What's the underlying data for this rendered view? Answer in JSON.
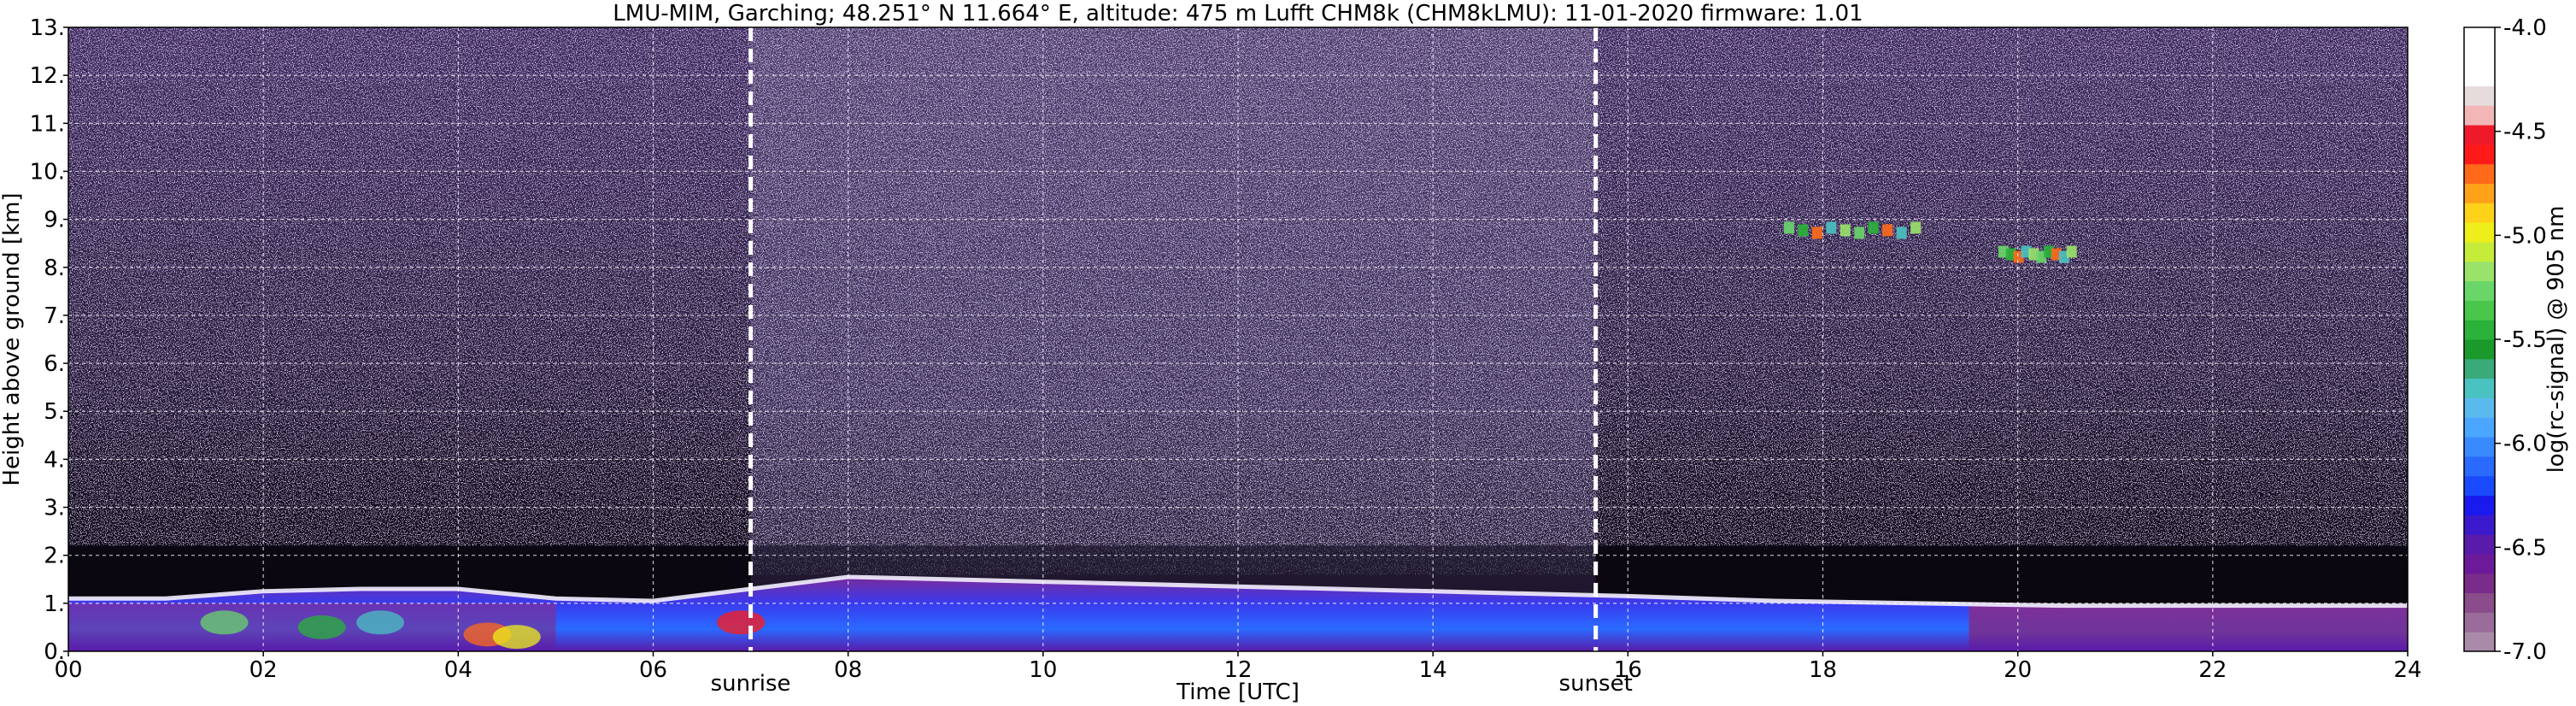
{
  "chart_data": {
    "type": "heatmap",
    "title": "LMU-MIM, Garching; 48.251° N 11.664° E, altitude: 475 m    Lufft CHM8k (CHM8kLMU): 11-01-2020    firmware: 1.01",
    "xlabel": "Time [UTC]",
    "ylabel": "Height above ground [km]",
    "xlim": [
      0,
      24
    ],
    "ylim": [
      0,
      13
    ],
    "x_ticks": [
      "00",
      "02",
      "04",
      "06",
      "08",
      "10",
      "12",
      "14",
      "16",
      "18",
      "20",
      "22",
      "24"
    ],
    "y_ticks": [
      "0.",
      "1.",
      "2.",
      "3.",
      "4.",
      "5.",
      "6.",
      "7.",
      "8.",
      "9.",
      "10.",
      "11.",
      "12.",
      "13."
    ],
    "grid": true,
    "events": [
      {
        "label": "sunrise",
        "time": 7.0
      },
      {
        "label": "sunset",
        "time": 15.67
      }
    ],
    "colorbar": {
      "label": "log(rc-signal) @ 905 nm",
      "range": [
        -7.0,
        -4.0
      ],
      "tick_values": [
        -7.0,
        -6.5,
        -6.0,
        -5.5,
        -5.0,
        -4.5,
        -4.0
      ],
      "tick_labels": [
        "-7.0",
        "-6.5",
        "-6.0",
        "-5.5",
        "-5.0",
        "-4.5",
        "-4.0"
      ],
      "colors": [
        "#a98aa9",
        "#9a6c9a",
        "#8a4c8a",
        "#7a2c8a",
        "#6c1a9a",
        "#5a1aaa",
        "#3a1acc",
        "#1a1aee",
        "#1a4aff",
        "#2a6aff",
        "#3a8aff",
        "#4aa6ff",
        "#5abaee",
        "#4ac2c2",
        "#3aaa7a",
        "#1a9a2a",
        "#2ab23a",
        "#4ac64a",
        "#6ad66a",
        "#9ae26a",
        "#c6ec3a",
        "#eeee1a",
        "#ffd21a",
        "#ffa21a",
        "#ff6a1a",
        "#ff1a1a",
        "#ee1a2a",
        "#f2b6b6",
        "#e6dcdc",
        "#ffffff",
        "#ffffff",
        "#ffffff"
      ]
    },
    "series": [
      {
        "name": "",
        "x": [
          0,
          1,
          2,
          3,
          4,
          5,
          6,
          7,
          8,
          10,
          12,
          14,
          16,
          17.5,
          19,
          20.5,
          22,
          24
        ],
        "y": [
          1.1,
          1.1,
          1.25,
          1.3,
          1.3,
          1.1,
          1.05,
          1.3,
          1.55,
          1.45,
          1.35,
          1.25,
          1.15,
          1.05,
          1.0,
          0.95,
          0.95,
          0.95
        ]
      }
    ],
    "annotations": [
      {
        "type": "cloud",
        "x_range": [
          17.6,
          18.9
        ],
        "y": 8.8
      },
      {
        "type": "cloud",
        "x_range": [
          19.8,
          20.5
        ],
        "y": 8.3
      }
    ]
  }
}
